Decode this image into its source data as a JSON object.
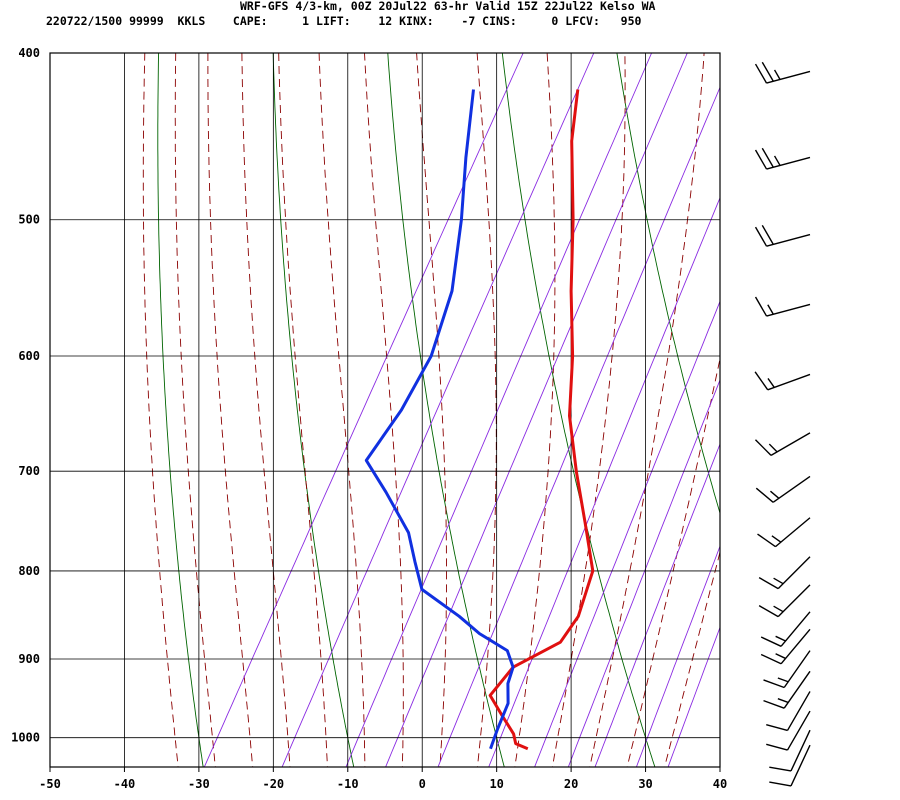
{
  "header": {
    "line1": "WRF-GFS 4/3-km, 00Z 20Jul22 63-hr Valid 15Z 22Jul22 Kelso WA",
    "line2": "220722/1500 99999  KKLS    CAPE:     1 LIFT:    12 KINX:    -7 CINS:     0 LFCV:   950"
  },
  "chart_data": {
    "type": "line",
    "subtype": "skew-t log-p sounding",
    "xlim": [
      -50,
      40
    ],
    "pressure_range": [
      1040,
      400
    ],
    "x_ticks": [
      "-50",
      "-40",
      "-30",
      "-20",
      "-10",
      "0",
      "10",
      "20",
      "30",
      "40"
    ],
    "x_tick_values": [
      -50,
      -40,
      -30,
      -20,
      -10,
      0,
      10,
      20,
      30,
      40
    ],
    "y_ticks": [
      "400",
      "500",
      "600",
      "700",
      "800",
      "900",
      "1000"
    ],
    "y_tick_values": [
      400,
      500,
      600,
      700,
      800,
      900,
      1000
    ],
    "grid": true,
    "colors": {
      "temperature": "#e01010",
      "dewpoint": "#1030e0",
      "dry_adiabat": "#006400",
      "moist_adiabat": "#8b0000",
      "mixing_ratio": "#8a2be2",
      "grid": "#000000"
    },
    "series": [
      {
        "role": "temperature",
        "points": [
          [
            1015,
            15
          ],
          [
            1008,
            13
          ],
          [
            995,
            12
          ],
          [
            970,
            9
          ],
          [
            945,
            6
          ],
          [
            910,
            7
          ],
          [
            880,
            11.5
          ],
          [
            850,
            12
          ],
          [
            800,
            10.6
          ],
          [
            750,
            6
          ],
          [
            700,
            1
          ],
          [
            650,
            -4
          ],
          [
            600,
            -8
          ],
          [
            550,
            -13
          ],
          [
            500,
            -18
          ],
          [
            450,
            -24
          ],
          [
            420,
            -27
          ]
        ]
      },
      {
        "role": "dewpoint",
        "points": [
          [
            1015,
            10
          ],
          [
            990,
            9.5
          ],
          [
            955,
            9
          ],
          [
            930,
            7.5
          ],
          [
            910,
            7
          ],
          [
            890,
            5
          ],
          [
            870,
            0
          ],
          [
            850,
            -4
          ],
          [
            820,
            -11
          ],
          [
            790,
            -14
          ],
          [
            760,
            -17
          ],
          [
            720,
            -23
          ],
          [
            690,
            -28
          ],
          [
            645,
            -27
          ],
          [
            600,
            -27
          ],
          [
            550,
            -29
          ],
          [
            500,
            -33
          ],
          [
            460,
            -37
          ],
          [
            420,
            -41
          ]
        ]
      }
    ],
    "wind_barbs": [
      {
        "p": 410,
        "dir": 255,
        "kt": 25
      },
      {
        "p": 460,
        "dir": 255,
        "kt": 25
      },
      {
        "p": 510,
        "dir": 255,
        "kt": 20
      },
      {
        "p": 560,
        "dir": 255,
        "kt": 15
      },
      {
        "p": 615,
        "dir": 250,
        "kt": 15
      },
      {
        "p": 665,
        "dir": 240,
        "kt": 15
      },
      {
        "p": 705,
        "dir": 235,
        "kt": 15
      },
      {
        "p": 745,
        "dir": 230,
        "kt": 15
      },
      {
        "p": 785,
        "dir": 225,
        "kt": 15
      },
      {
        "p": 815,
        "dir": 225,
        "kt": 15
      },
      {
        "p": 845,
        "dir": 220,
        "kt": 15
      },
      {
        "p": 865,
        "dir": 220,
        "kt": 15
      },
      {
        "p": 890,
        "dir": 215,
        "kt": 15
      },
      {
        "p": 915,
        "dir": 215,
        "kt": 15
      },
      {
        "p": 940,
        "dir": 210,
        "kt": 10
      },
      {
        "p": 965,
        "dir": 210,
        "kt": 10
      },
      {
        "p": 990,
        "dir": 205,
        "kt": 10
      },
      {
        "p": 1010,
        "dir": 205,
        "kt": 10
      }
    ]
  }
}
